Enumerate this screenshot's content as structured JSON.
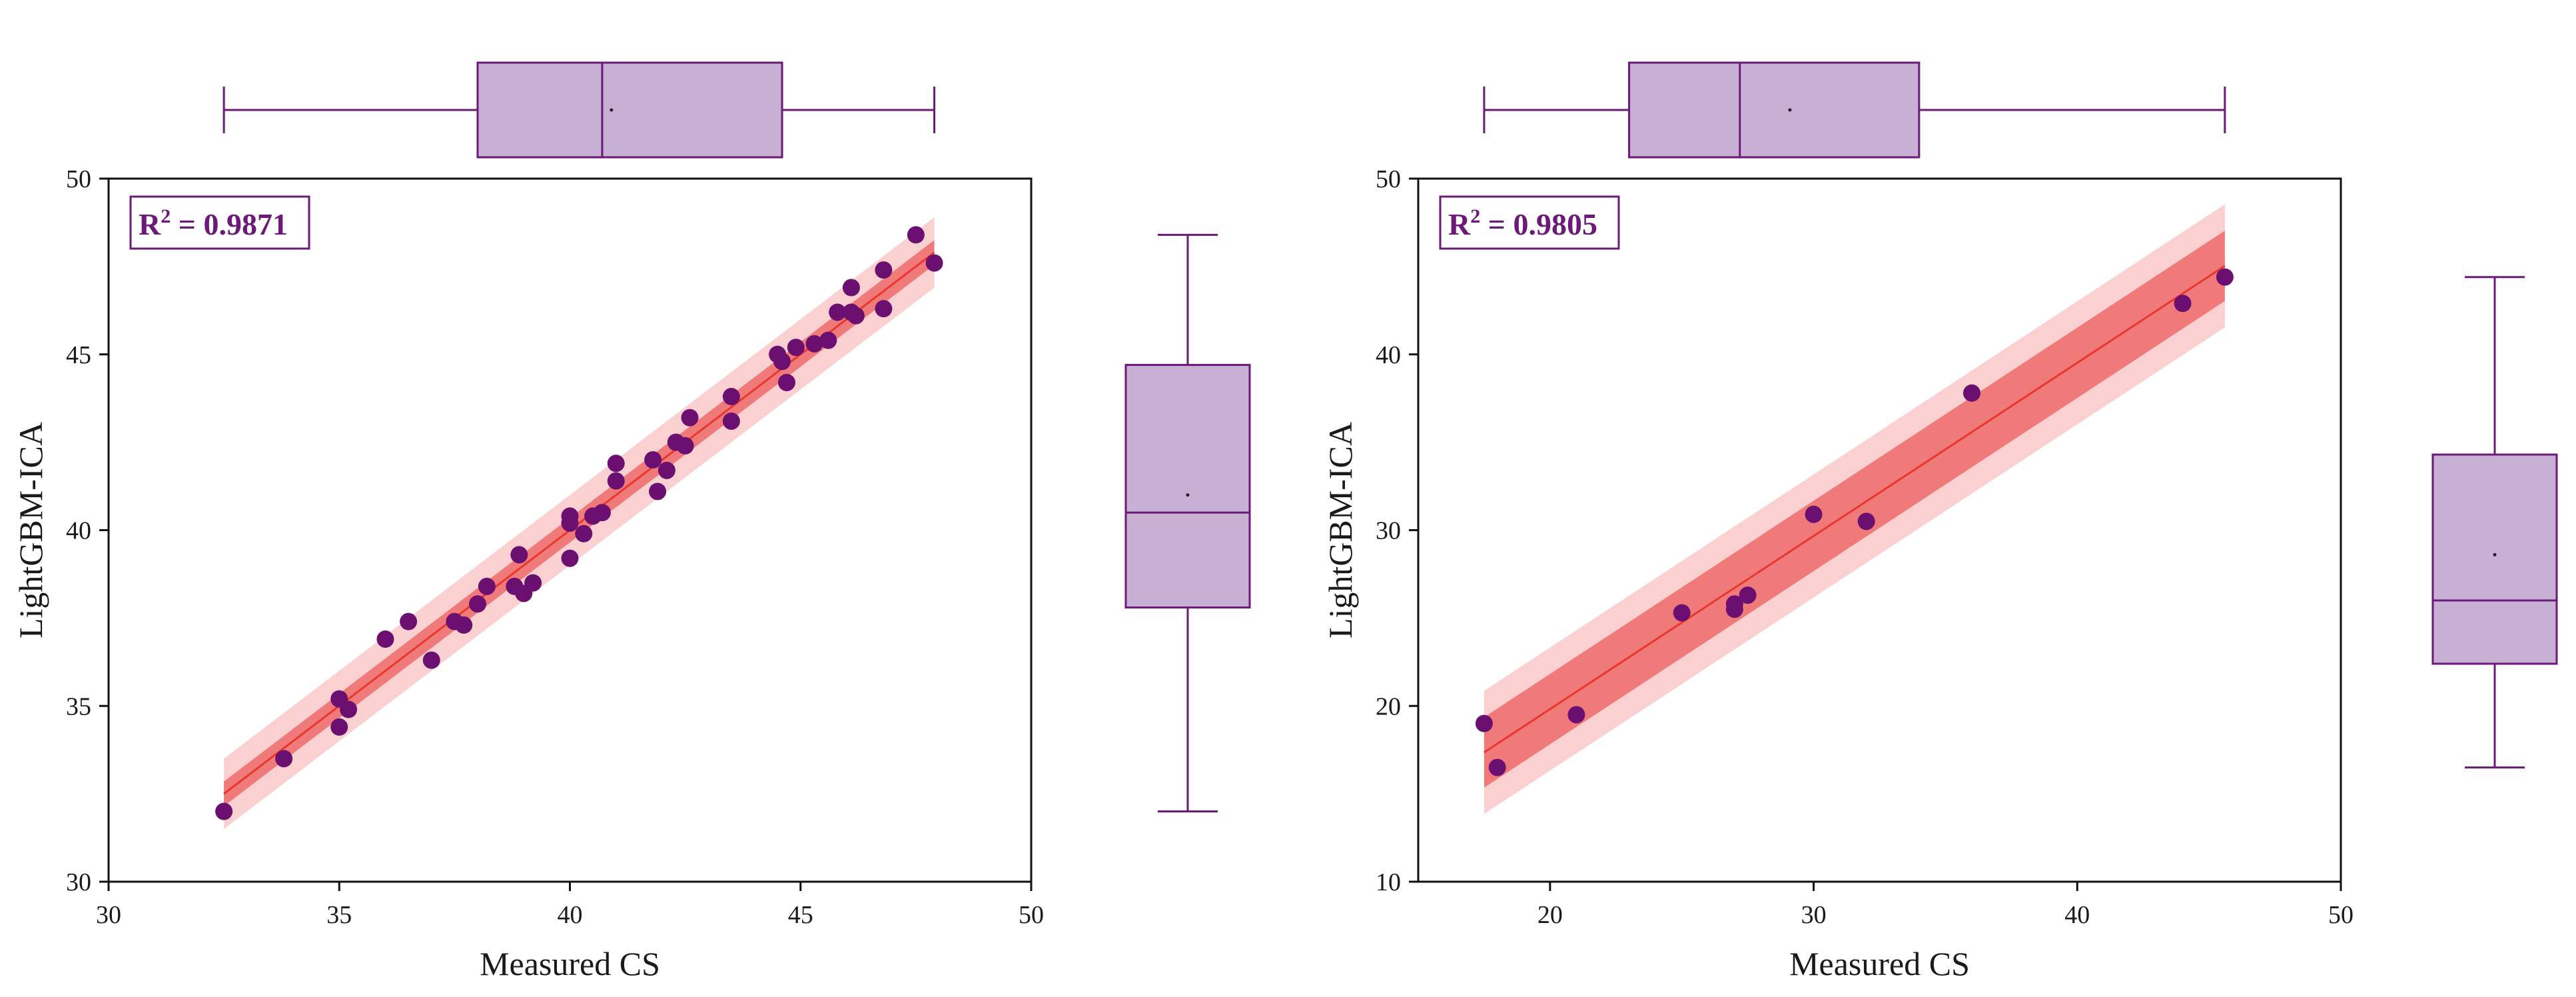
{
  "colors": {
    "point": "#6b1070",
    "box_fill": "#c8b0d4",
    "box_stroke": "#6b1a78",
    "fit_line": "#e8382e",
    "confidence_band": "#f07a7a",
    "prediction_band": "#fbd0d0",
    "r2_text": "#6b1a78"
  },
  "chart_data": [
    {
      "type": "scatter",
      "title": "",
      "xlabel": "Measured CS",
      "ylabel": "LightGBM-ICA",
      "xlim": [
        30,
        50
      ],
      "ylim": [
        30,
        50
      ],
      "xticks": [
        30,
        35,
        40,
        45,
        50
      ],
      "yticks": [
        30,
        35,
        40,
        45,
        50
      ],
      "r2_label": "R",
      "r2_sup": "2",
      "r2_value": " = 0.9871",
      "fit": {
        "slope": 1.0,
        "intercept": 0.0,
        "x_start": 32.5,
        "x_end": 47.9,
        "confidence_halfwidth": 0.35,
        "prediction_halfwidth": 1.0
      },
      "points": [
        [
          32.5,
          32.0
        ],
        [
          33.8,
          33.5
        ],
        [
          35.0,
          35.2
        ],
        [
          35.0,
          34.4
        ],
        [
          35.2,
          34.9
        ],
        [
          36.0,
          36.9
        ],
        [
          36.5,
          37.4
        ],
        [
          37.0,
          36.3
        ],
        [
          37.5,
          37.4
        ],
        [
          37.7,
          37.3
        ],
        [
          38.0,
          37.9
        ],
        [
          38.2,
          38.4
        ],
        [
          38.8,
          38.4
        ],
        [
          38.9,
          39.3
        ],
        [
          39.0,
          38.2
        ],
        [
          39.2,
          38.5
        ],
        [
          40.0,
          40.4
        ],
        [
          40.0,
          40.2
        ],
        [
          40.0,
          39.2
        ],
        [
          40.3,
          39.9
        ],
        [
          40.5,
          40.4
        ],
        [
          40.7,
          40.5
        ],
        [
          41.0,
          41.9
        ],
        [
          41.0,
          41.4
        ],
        [
          41.8,
          42.0
        ],
        [
          41.9,
          41.1
        ],
        [
          42.1,
          41.7
        ],
        [
          42.3,
          42.5
        ],
        [
          42.5,
          42.4
        ],
        [
          42.6,
          43.2
        ],
        [
          43.5,
          43.8
        ],
        [
          43.5,
          43.1
        ],
        [
          44.5,
          45.0
        ],
        [
          44.6,
          44.8
        ],
        [
          44.7,
          44.2
        ],
        [
          44.9,
          45.2
        ],
        [
          45.3,
          45.3
        ],
        [
          45.6,
          45.4
        ],
        [
          45.8,
          46.2
        ],
        [
          46.1,
          46.2
        ],
        [
          46.1,
          46.9
        ],
        [
          46.2,
          46.1
        ],
        [
          46.8,
          47.4
        ],
        [
          46.8,
          46.3
        ],
        [
          47.5,
          48.4
        ],
        [
          47.9,
          47.6
        ]
      ],
      "x_box": {
        "min": 32.5,
        "q1": 38.0,
        "median": 40.7,
        "mean": 40.9,
        "q3": 44.6,
        "max": 47.9
      },
      "y_box": {
        "min": 32.0,
        "q1": 37.8,
        "median": 40.5,
        "mean": 41.0,
        "q3": 44.7,
        "max": 48.4
      }
    },
    {
      "type": "scatter",
      "title": "",
      "xlabel": "Measured CS",
      "ylabel": "LightGBM-ICA",
      "xlim": [
        15,
        50
      ],
      "ylim": [
        10,
        50
      ],
      "xticks": [
        20,
        30,
        40,
        50
      ],
      "yticks": [
        10,
        20,
        30,
        40,
        50
      ],
      "r2_label": "R",
      "r2_sup": "2",
      "r2_value": " = 0.9805",
      "fit": {
        "slope": 0.985,
        "intercept": 0.12,
        "x_start": 17.5,
        "x_end": 45.6,
        "confidence_halfwidth": 2.0,
        "prediction_halfwidth": 3.5
      },
      "points": [
        [
          17.5,
          19.0
        ],
        [
          18.0,
          16.5
        ],
        [
          21.0,
          19.5
        ],
        [
          25.0,
          25.3
        ],
        [
          27.0,
          25.5
        ],
        [
          27.0,
          25.8
        ],
        [
          27.5,
          26.3
        ],
        [
          30.0,
          30.9
        ],
        [
          32.0,
          30.5
        ],
        [
          36.0,
          37.8
        ],
        [
          44.0,
          42.9
        ],
        [
          45.6,
          44.4
        ]
      ],
      "x_box": {
        "min": 17.5,
        "q1": 23.0,
        "median": 27.2,
        "mean": 29.1,
        "q3": 34.0,
        "max": 45.6
      },
      "y_box": {
        "min": 16.5,
        "q1": 22.4,
        "median": 26.0,
        "mean": 28.6,
        "q3": 34.3,
        "max": 44.4
      }
    }
  ]
}
